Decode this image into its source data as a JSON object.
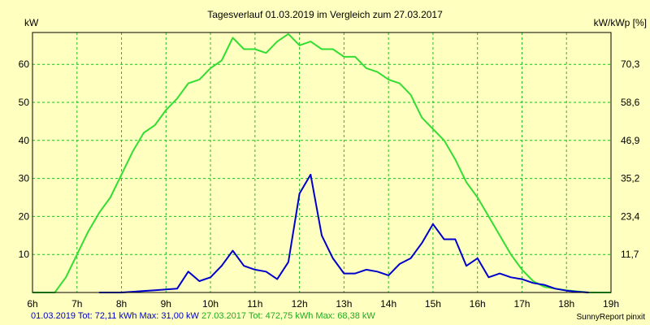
{
  "chart_data": {
    "type": "line",
    "title": "Tagesverlauf 01.03.2019 im Vergleich zum 27.03.2017",
    "ylabel_left": "kW",
    "ylabel_right": "kW/kWp [%]",
    "x_ticks": [
      "6h",
      "7h",
      "8h",
      "9h",
      "10h",
      "11h",
      "12h",
      "13h",
      "14h",
      "15h",
      "16h",
      "17h",
      "18h",
      "19h"
    ],
    "xlim": [
      6,
      19
    ],
    "ylim_left": [
      0,
      68.38
    ],
    "y_ticks_left": [
      10,
      20,
      30,
      40,
      50,
      60
    ],
    "y_ticks_right": [
      "11,7",
      "23,4",
      "35,2",
      "46,9",
      "58,6",
      "70,3"
    ],
    "grid": true,
    "series": [
      {
        "name": "27.03.2017",
        "color": "#33dd33",
        "x": [
          6.0,
          6.5,
          6.75,
          7.0,
          7.25,
          7.5,
          7.75,
          8.0,
          8.25,
          8.5,
          8.75,
          9.0,
          9.25,
          9.5,
          9.75,
          10.0,
          10.25,
          10.5,
          10.75,
          11.0,
          11.25,
          11.5,
          11.75,
          12.0,
          12.25,
          12.5,
          12.75,
          13.0,
          13.25,
          13.5,
          13.75,
          14.0,
          14.25,
          14.5,
          14.75,
          15.0,
          15.25,
          15.5,
          15.75,
          16.0,
          16.25,
          16.5,
          16.75,
          17.0,
          17.25,
          17.5,
          17.75,
          18.0,
          18.25,
          18.5,
          18.75,
          19.0
        ],
        "values": [
          0,
          0,
          4,
          10,
          16,
          21,
          25,
          31,
          37,
          42,
          44,
          48,
          51,
          55,
          56,
          59,
          61,
          67,
          64,
          64,
          63,
          66,
          68,
          65,
          66,
          64,
          64,
          62,
          62,
          59,
          58,
          56,
          55,
          52,
          46,
          43,
          40,
          35,
          29,
          25,
          20,
          15,
          10,
          6,
          3,
          1.5,
          1,
          0.6,
          0.3,
          0,
          0,
          0
        ]
      },
      {
        "name": "01.03.2019",
        "color": "#0000cc",
        "x": [
          7.5,
          8.0,
          8.25,
          8.5,
          8.75,
          9.0,
          9.25,
          9.5,
          9.75,
          10.0,
          10.25,
          10.5,
          10.75,
          11.0,
          11.25,
          11.5,
          11.75,
          12.0,
          12.25,
          12.5,
          12.75,
          13.0,
          13.25,
          13.5,
          13.75,
          14.0,
          14.25,
          14.5,
          14.75,
          15.0,
          15.25,
          15.5,
          15.75,
          16.0,
          16.25,
          16.5,
          16.75,
          17.0,
          17.25,
          17.5,
          17.75,
          18.0,
          18.25,
          18.5
        ],
        "values": [
          0,
          0,
          0.2,
          0.4,
          0.6,
          0.8,
          1,
          5.5,
          3,
          4,
          7,
          11,
          7,
          6,
          5.5,
          3.5,
          8,
          26,
          31,
          15,
          9,
          5,
          5,
          6,
          5.5,
          4.5,
          7.5,
          9,
          13,
          18,
          14,
          14,
          7,
          9,
          4,
          5,
          4,
          3.5,
          2.5,
          2,
          1,
          0.5,
          0.2,
          0
        ]
      }
    ]
  },
  "footer": {
    "series1_summary": "01.03.2019 Tot: 72,11 kWh Max: 31,00 kW",
    "series2_summary": "27.03.2017 Tot: 472,75 kWh Max: 68,38 kW",
    "credit": "SunnyReport pinxit"
  },
  "colors": {
    "background": "#ffffc0",
    "grid": "#22bb22",
    "series1": "#0000cc",
    "series2": "#33dd33"
  }
}
